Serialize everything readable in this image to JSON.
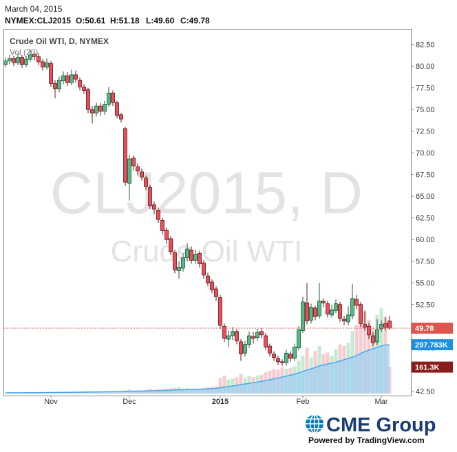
{
  "header": {
    "date": "March 04, 2015",
    "symbol": "NYMEX:CLJ2015",
    "ohlc": [
      "O:50.61",
      "H:51.18",
      "L:49.60",
      "C:49.78"
    ]
  },
  "footer": {
    "brand": "CME Group",
    "powered": "Powered by TradingView.com"
  },
  "chart_data": {
    "type": "candlestick",
    "title": "Crude Oil WTI, D, NYMEX",
    "watermark": [
      "CLJ2015, D",
      "Crude Oil WTI"
    ],
    "categories": [
      null,
      null,
      null,
      null,
      null,
      null,
      null,
      null,
      null,
      null,
      null,
      "Nov",
      null,
      null,
      null,
      null,
      null,
      null,
      null,
      null,
      null,
      null,
      null,
      null,
      null,
      null,
      null,
      null,
      null,
      null,
      "Dec",
      null,
      null,
      null,
      null,
      null,
      null,
      null,
      null,
      null,
      null,
      null,
      null,
      null,
      null,
      null,
      null,
      null,
      null,
      null,
      null,
      null,
      "2015",
      null,
      null,
      null,
      null,
      null,
      null,
      null,
      null,
      null,
      null,
      null,
      null,
      null,
      null,
      null,
      null,
      null,
      null,
      null,
      "Feb",
      null,
      null,
      null,
      null,
      null,
      null,
      null,
      null,
      null,
      null,
      null,
      null,
      null,
      null,
      null,
      null,
      null,
      null,
      "Mar",
      null,
      null
    ],
    "open": [
      80.2,
      80.6,
      80.9,
      80.4,
      81.0,
      80.2,
      80.8,
      81.4,
      81.1,
      80.5,
      79.9,
      80.3,
      78.0,
      77.4,
      78.3,
      78.9,
      78.1,
      79.0,
      78.4,
      77.6,
      77.3,
      75.0,
      74.6,
      75.4,
      74.8,
      75.6,
      76.9,
      75.8,
      74.4,
      72.8,
      66.5,
      69.4,
      68.4,
      67.8,
      67.1,
      66.0,
      64.0,
      63.4,
      62.2,
      61.1,
      60.1,
      58.5,
      56.4,
      56.7,
      57.9,
      58.8,
      57.6,
      58.4,
      57.3,
      55.8,
      55.1,
      54.3,
      53.3,
      50.0,
      48.5,
      48.9,
      49.4,
      48.2,
      46.9,
      47.9,
      48.8,
      48.7,
      49.4,
      48.9,
      47.7,
      46.8,
      46.3,
      45.9,
      45.8,
      46.8,
      46.3,
      47.5,
      49.5,
      52.7,
      50.7,
      52.1,
      51.2,
      52.9,
      52.6,
      51.3,
      51.8,
      52.5,
      50.8,
      50.5,
      51.2,
      53.1,
      52.5,
      50.2,
      50.0,
      48.9,
      48.2,
      49.7,
      50.3,
      50.61
    ],
    "high": [
      81.0,
      81.3,
      81.2,
      81.5,
      81.3,
      81.2,
      81.9,
      81.8,
      81.5,
      80.8,
      80.9,
      80.6,
      78.4,
      78.8,
      79.4,
      79.3,
      79.6,
      79.5,
      78.7,
      77.9,
      77.5,
      75.4,
      75.8,
      75.8,
      76.0,
      77.6,
      77.2,
      76.0,
      74.6,
      73.0,
      69.8,
      69.7,
      68.8,
      68.2,
      67.4,
      66.3,
      64.4,
      63.7,
      62.5,
      61.4,
      60.4,
      58.8,
      57.5,
      58.4,
      59.6,
      59.2,
      58.8,
      58.7,
      57.6,
      56.2,
      55.4,
      54.6,
      53.6,
      50.3,
      49.5,
      49.9,
      49.7,
      48.5,
      48.3,
      49.4,
      49.3,
      49.7,
      49.8,
      49.2,
      48.0,
      47.1,
      46.6,
      46.2,
      47.3,
      47.1,
      48.0,
      50.0,
      53.4,
      55.0,
      52.6,
      52.4,
      55.0,
      53.2,
      52.9,
      52.5,
      53.1,
      52.8,
      51.2,
      52.3,
      54.9,
      53.6,
      52.8,
      51.8,
      50.4,
      49.3,
      50.8,
      50.7,
      51.0,
      51.18
    ],
    "low": [
      79.9,
      80.2,
      80.0,
      80.1,
      79.8,
      79.9,
      80.5,
      80.7,
      80.1,
      79.5,
      79.6,
      77.6,
      76.3,
      77.0,
      77.9,
      77.7,
      77.8,
      78.1,
      77.2,
      76.8,
      74.6,
      73.4,
      74.2,
      74.3,
      74.4,
      75.3,
      75.4,
      74.0,
      73.5,
      66.2,
      64.5,
      68.0,
      67.4,
      66.8,
      65.7,
      63.5,
      62.9,
      61.9,
      60.6,
      59.5,
      58.2,
      56.1,
      55.5,
      56.3,
      57.5,
      57.2,
      57.2,
      56.8,
      55.5,
      54.6,
      53.8,
      52.9,
      49.7,
      48.2,
      47.6,
      48.4,
      47.9,
      46.0,
      46.5,
      47.5,
      48.0,
      48.3,
      48.6,
      47.2,
      46.5,
      46.0,
      45.5,
      45.4,
      45.4,
      45.9,
      46.0,
      47.2,
      49.2,
      50.2,
      50.3,
      50.7,
      50.9,
      52.2,
      51.0,
      51.0,
      51.5,
      50.5,
      50.1,
      50.1,
      50.8,
      52.0,
      49.9,
      49.5,
      48.5,
      47.7,
      47.8,
      49.3,
      49.5,
      49.6
    ],
    "close": [
      80.6,
      80.9,
      80.4,
      81.0,
      80.2,
      80.8,
      81.3,
      81.1,
      80.5,
      79.9,
      80.4,
      78.0,
      77.4,
      78.4,
      78.9,
      78.1,
      79.0,
      78.5,
      77.6,
      77.2,
      75.0,
      74.6,
      75.4,
      74.8,
      75.6,
      76.9,
      75.8,
      74.3,
      73.9,
      66.6,
      69.3,
      68.5,
      67.9,
      67.2,
      66.1,
      63.9,
      63.5,
      62.3,
      61.0,
      60.0,
      58.6,
      56.5,
      56.8,
      57.9,
      58.9,
      57.6,
      58.3,
      57.2,
      55.9,
      55.0,
      54.2,
      53.4,
      50.1,
      48.6,
      48.9,
      49.4,
      48.3,
      46.8,
      47.9,
      48.9,
      48.6,
      49.3,
      49.0,
      47.6,
      46.9,
      46.4,
      45.9,
      45.8,
      46.9,
      46.3,
      47.6,
      49.6,
      52.8,
      50.6,
      52.2,
      51.1,
      52.9,
      52.7,
      51.4,
      51.9,
      52.6,
      50.9,
      50.6,
      51.3,
      53.2,
      52.4,
      50.3,
      49.9,
      49.0,
      48.1,
      49.6,
      50.2,
      49.9,
      49.78
    ],
    "colors": {
      "up": "#53b987",
      "down": "#eb4d5c",
      "up_border": "#225437",
      "down_border": "#5b1a13",
      "last": "#e0554b"
    },
    "ylim": [
      42.0,
      84.3
    ],
    "yticks": [
      {
        "value": 42.5,
        "label": "42.50"
      },
      {
        "value": 45,
        "label": "45.00"
      },
      {
        "value": 47.5,
        "label": "47.50"
      },
      {
        "value": 50,
        "label": "50.00"
      },
      {
        "value": 52.5,
        "label": "52.50"
      },
      {
        "value": 55,
        "label": "55.00"
      },
      {
        "value": 57.5,
        "label": "57.50"
      },
      {
        "value": 60,
        "label": "60.00"
      },
      {
        "value": 62.5,
        "label": "62.50"
      },
      {
        "value": 65,
        "label": "65.00"
      },
      {
        "value": 67.5,
        "label": "67.50"
      },
      {
        "value": 70,
        "label": "70.00"
      },
      {
        "value": 72.5,
        "label": "72.50"
      },
      {
        "value": 75,
        "label": "75.00"
      },
      {
        "value": 77.5,
        "label": "77.50"
      },
      {
        "value": 80,
        "label": "80.00"
      },
      {
        "value": 82.5,
        "label": "82.50"
      }
    ],
    "volume": {
      "name": "Vol (20)",
      "lim": [
        0,
        2100000
      ],
      "values": [
        4000,
        5000,
        4500,
        6000,
        5000,
        5500,
        7000,
        6000,
        6500,
        7000,
        8000,
        9000,
        8000,
        10000,
        9000,
        11000,
        10000,
        12000,
        11000,
        10000,
        14000,
        13000,
        12000,
        11000,
        13000,
        15000,
        12000,
        14000,
        13000,
        20000,
        25000,
        18000,
        20000,
        19000,
        22000,
        28000,
        24000,
        26000,
        27000,
        30000,
        32000,
        35000,
        38000,
        30000,
        33000,
        28000,
        30000,
        26000,
        34000,
        38000,
        40000,
        45000,
        95000,
        110000,
        85000,
        90000,
        100000,
        120000,
        95000,
        105000,
        100000,
        110000,
        115000,
        130000,
        140000,
        150000,
        145000,
        160000,
        150000,
        155000,
        165000,
        200000,
        230000,
        280000,
        220000,
        260000,
        290000,
        240000,
        250000,
        230000,
        270000,
        300000,
        290000,
        310000,
        380000,
        420000,
        540000,
        500000,
        450000,
        400000,
        480000,
        520000,
        470000,
        161300
      ],
      "value_labels": [
        null,
        null,
        null,
        null,
        null,
        null,
        null,
        null,
        null,
        null,
        null,
        null,
        null,
        null,
        null,
        null,
        null,
        null,
        null,
        null,
        null,
        null,
        null,
        null,
        null,
        null,
        null,
        null,
        null,
        null,
        null,
        null,
        null,
        null,
        null,
        null,
        null,
        null,
        null,
        null,
        null,
        null,
        null,
        null,
        null,
        null,
        null,
        null,
        null,
        null,
        null,
        null,
        null,
        null,
        null,
        null,
        null,
        null,
        null,
        null,
        null,
        null,
        null,
        null,
        null,
        null,
        null,
        null,
        null,
        null,
        null,
        null,
        null,
        null,
        null,
        null,
        null,
        null,
        null,
        null,
        null,
        null,
        null,
        null,
        null,
        null,
        null,
        null,
        null,
        null,
        null,
        null,
        null,
        "161.3K"
      ],
      "ma": [
        4000,
        4500,
        4500,
        4900,
        4900,
        5000,
        5300,
        5400,
        5500,
        5700,
        5900,
        6200,
        6400,
        6800,
        7000,
        7300,
        7600,
        8000,
        8200,
        8400,
        8900,
        9300,
        9600,
        10000,
        10300,
        10800,
        11100,
        11500,
        11900,
        12600,
        13400,
        14000,
        14500,
        15000,
        15600,
        16500,
        17100,
        17800,
        18600,
        19400,
        20300,
        21400,
        22600,
        23400,
        24300,
        25000,
        25800,
        26500,
        27500,
        28700,
        30000,
        31600,
        35000,
        39500,
        42800,
        46300,
        50200,
        54800,
        58300,
        62200,
        65900,
        69900,
        74100,
        78800,
        83900,
        89400,
        94800,
        100600,
        106200,
        112000,
        118300,
        126100,
        134800,
        143600,
        150600,
        159100,
        168400,
        174400,
        180600,
        185400,
        191900,
        199400,
        206200,
        214300,
        222000,
        232000,
        245000,
        256000,
        265000,
        273000,
        282000,
        290000,
        296000,
        297783
      ],
      "ma_labels": [
        null,
        null,
        null,
        null,
        null,
        null,
        null,
        null,
        null,
        null,
        null,
        null,
        null,
        null,
        null,
        null,
        null,
        null,
        null,
        null,
        null,
        null,
        null,
        null,
        null,
        null,
        null,
        null,
        null,
        null,
        null,
        null,
        null,
        null,
        null,
        null,
        null,
        null,
        null,
        null,
        null,
        null,
        null,
        null,
        null,
        null,
        null,
        null,
        null,
        null,
        null,
        null,
        null,
        null,
        null,
        null,
        null,
        null,
        null,
        null,
        null,
        null,
        null,
        null,
        null,
        null,
        null,
        null,
        null,
        null,
        null,
        null,
        null,
        null,
        null,
        null,
        null,
        null,
        null,
        null,
        null,
        null,
        null,
        null,
        null,
        null,
        null,
        null,
        null,
        null,
        null,
        null,
        null,
        "297.783K"
      ],
      "colors": {
        "up": "#b7e4c7",
        "down": "#f3c1c4",
        "ma_fill": "#9fd0f2",
        "ma_line": "#4aa8e8",
        "ma_label": "#1e90e0",
        "last": "#8b1c1c"
      }
    }
  }
}
